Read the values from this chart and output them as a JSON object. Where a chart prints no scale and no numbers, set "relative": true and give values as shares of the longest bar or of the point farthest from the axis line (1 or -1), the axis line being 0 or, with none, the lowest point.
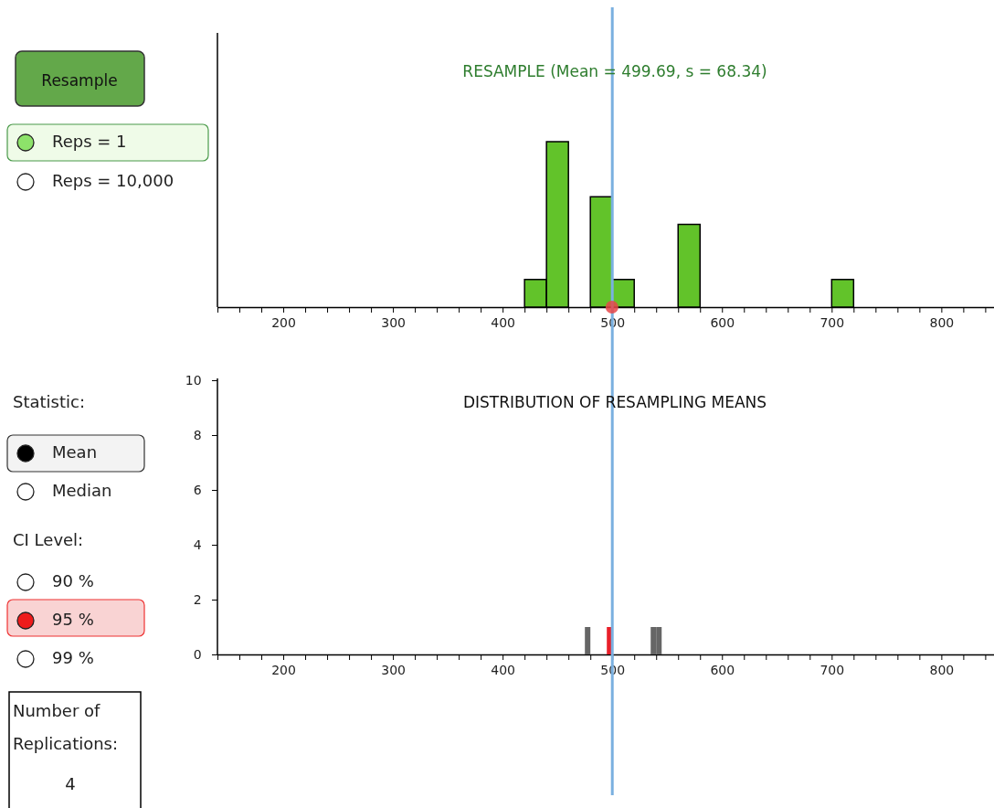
{
  "chart_data": [
    {
      "type": "bar",
      "title": "RESAMPLE (Mean = 499.69, s = 68.34)",
      "relative": true,
      "color": "#62c32a",
      "x": [
        430,
        450,
        490,
        510,
        570,
        710
      ],
      "values": [
        0.167,
        1,
        0.667,
        0.167,
        0.5,
        0.167
      ],
      "series": [
        {
          "type": "scatter",
          "x": [
            499.69
          ],
          "values": [
            0
          ],
          "color": "#e8484a"
        }
      ],
      "xlim": [
        140,
        848
      ],
      "xticks": [
        {
          "value": 140,
          "label": null
        },
        {
          "value": 160,
          "label": null
        },
        {
          "value": 180,
          "label": null
        },
        200,
        {
          "value": 220,
          "label": null
        },
        {
          "value": 240,
          "label": null
        },
        {
          "value": 260,
          "label": null
        },
        {
          "value": 280,
          "label": null
        },
        300,
        {
          "value": 320,
          "label": null
        },
        {
          "value": 340,
          "label": null
        },
        {
          "value": 360,
          "label": null
        },
        {
          "value": 380,
          "label": null
        },
        400,
        {
          "value": 420,
          "label": null
        },
        {
          "value": 440,
          "label": null
        },
        {
          "value": 460,
          "label": null
        },
        {
          "value": 480,
          "label": null
        },
        500,
        {
          "value": 520,
          "label": null
        },
        {
          "value": 540,
          "label": null
        },
        {
          "value": 560,
          "label": null
        },
        {
          "value": 580,
          "label": null
        },
        600,
        {
          "value": 620,
          "label": null
        },
        {
          "value": 640,
          "label": null
        },
        {
          "value": 660,
          "label": null
        },
        {
          "value": 680,
          "label": null
        },
        700,
        {
          "value": 720,
          "label": null
        },
        {
          "value": 740,
          "label": null
        },
        {
          "value": 760,
          "label": null
        },
        {
          "value": 780,
          "label": null
        },
        800,
        {
          "value": 820,
          "label": null
        },
        {
          "value": 840,
          "label": null
        }
      ],
      "ref_lines": [
        {
          "axis": "x",
          "value": 500,
          "color": "#7ab0e0"
        }
      ]
    },
    {
      "type": "histogram",
      "title": "DISTRIBUTION OF RESAMPLING MEANS",
      "bins": [
        475,
        480,
        485,
        490,
        495,
        500,
        505,
        510,
        515,
        520,
        525,
        530,
        535,
        540,
        545
      ],
      "values": [
        1,
        0,
        0,
        0,
        1,
        0,
        0,
        0,
        0,
        0,
        0,
        0,
        1,
        1
      ],
      "colors": [
        "#666666",
        "#666666",
        "#666666",
        "#666666",
        "#e8202a",
        "#666666",
        "#666666",
        "#666666",
        "#666666",
        "#666666",
        "#666666",
        "#666666",
        "#666666",
        "#666666"
      ],
      "xlim": [
        140,
        848
      ],
      "ylim": [
        0,
        10
      ],
      "yticks": [
        0,
        2,
        4,
        6,
        8,
        10
      ],
      "xticks": [
        {
          "value": 140,
          "label": null
        },
        {
          "value": 160,
          "label": null
        },
        {
          "value": 180,
          "label": null
        },
        200,
        {
          "value": 220,
          "label": null
        },
        {
          "value": 240,
          "label": null
        },
        {
          "value": 260,
          "label": null
        },
        {
          "value": 280,
          "label": null
        },
        300,
        {
          "value": 320,
          "label": null
        },
        {
          "value": 340,
          "label": null
        },
        {
          "value": 360,
          "label": null
        },
        {
          "value": 380,
          "label": null
        },
        400,
        {
          "value": 420,
          "label": null
        },
        {
          "value": 440,
          "label": null
        },
        {
          "value": 460,
          "label": null
        },
        {
          "value": 480,
          "label": null
        },
        500,
        {
          "value": 520,
          "label": null
        },
        {
          "value": 540,
          "label": null
        },
        {
          "value": 560,
          "label": null
        },
        {
          "value": 580,
          "label": null
        },
        600,
        {
          "value": 620,
          "label": null
        },
        {
          "value": 640,
          "label": null
        },
        {
          "value": 660,
          "label": null
        },
        {
          "value": 680,
          "label": null
        },
        700,
        {
          "value": 720,
          "label": null
        },
        {
          "value": 740,
          "label": null
        },
        {
          "value": 760,
          "label": null
        },
        {
          "value": 780,
          "label": null
        },
        800,
        {
          "value": 820,
          "label": null
        },
        {
          "value": 840,
          "label": null
        }
      ],
      "ref_lines": [
        {
          "axis": "x",
          "value": 500,
          "color": "#7ab0e0"
        }
      ]
    },
    {
      "type": "other",
      "annotations": [
        "Resample",
        "Reps = 1",
        "Reps = 10,000",
        "Statistic:",
        "Mean",
        "Median",
        "CI Level:",
        "90 %",
        "95 %",
        "99 %",
        "Number of",
        "Replications:",
        "4"
      ]
    }
  ]
}
